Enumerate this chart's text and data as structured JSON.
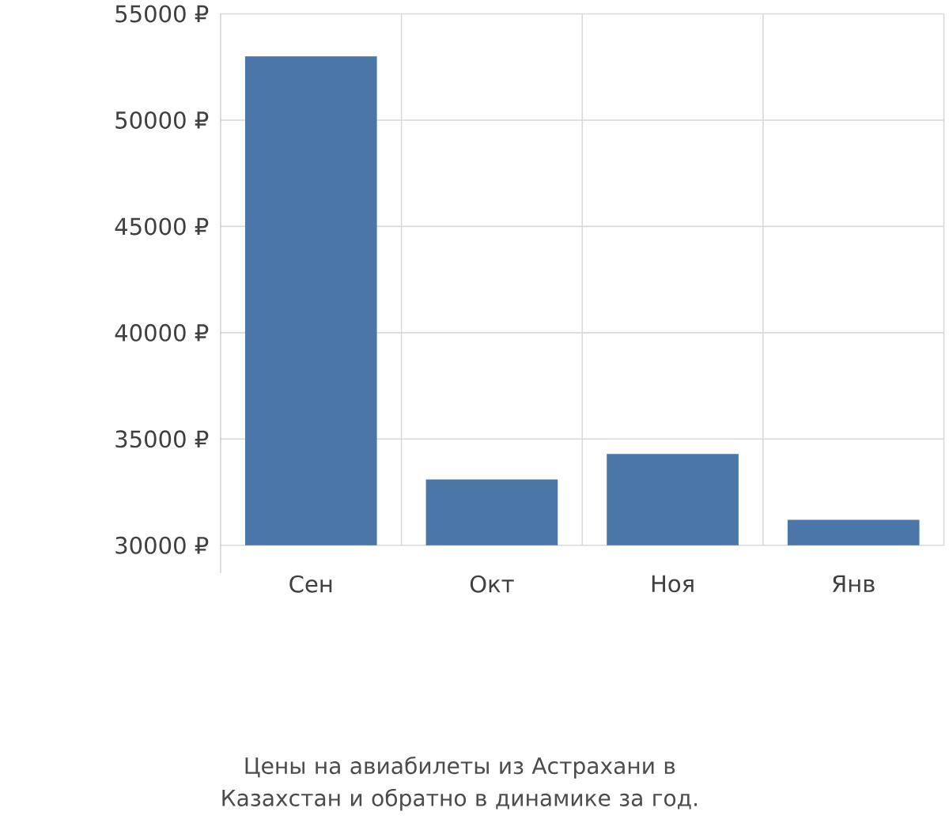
{
  "chart_data": {
    "type": "bar",
    "title": "Цены на авиабилеты из Астрахани в Казахстан и обратно в динамике за год.",
    "categories": [
      "Сен",
      "Окт",
      "Ноя",
      "Янв"
    ],
    "values": [
      53000,
      33100,
      34300,
      31200
    ],
    "color": "#4a76a8",
    "ylim": [
      30000,
      55000
    ],
    "yticks": [
      {
        "value": 30000,
        "label": "30000 ₽"
      },
      {
        "value": 35000,
        "label": "35000 ₽"
      },
      {
        "value": 40000,
        "label": "40000 ₽"
      },
      {
        "value": 45000,
        "label": "45000 ₽"
      },
      {
        "value": 50000,
        "label": "50000 ₽"
      },
      {
        "value": 55000,
        "label": "55000 ₽"
      }
    ],
    "grid": true
  }
}
